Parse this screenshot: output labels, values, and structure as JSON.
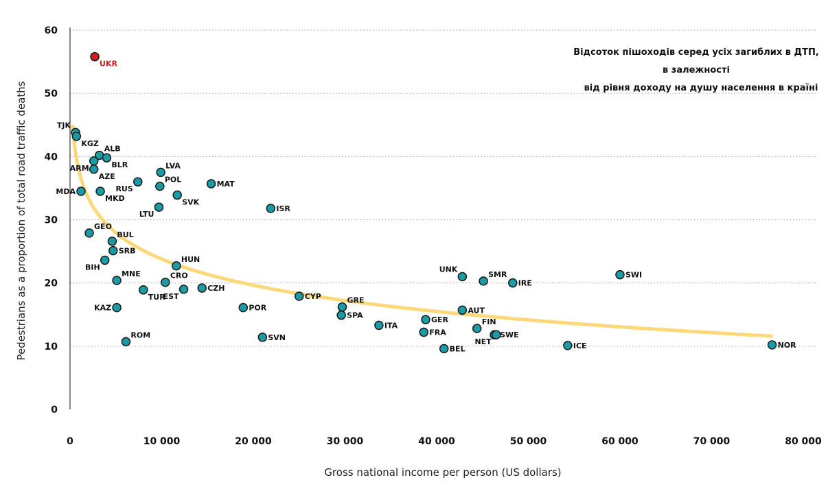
{
  "chart_data": {
    "type": "scatter",
    "title_lines": [
      "Відсоток пішоходів серед усіх загиблих в ДТП,",
      "в залежності",
      "від рівня доходу на душу населення в країні"
    ],
    "xlabel": "Gross national income per person (US dollars)",
    "ylabel": "Pedestrians as a proportion of total road traffic deaths",
    "xlim": [
      0,
      80000
    ],
    "ylim": [
      0,
      60
    ],
    "x_ticks": [
      0,
      10000,
      20000,
      30000,
      40000,
      50000,
      60000,
      70000,
      80000
    ],
    "x_tick_labels": [
      "0",
      "10 000",
      "20 000",
      "30 000",
      "40 000",
      "50 000",
      "60 000",
      "70 000",
      "80 000"
    ],
    "y_ticks": [
      0,
      10,
      20,
      30,
      40,
      50,
      60
    ],
    "y_tick_labels": [
      "0",
      "10",
      "20",
      "30",
      "40",
      "50",
      "60"
    ],
    "grid": "horizontal dotted",
    "colors": {
      "point": "#1a9ba5",
      "highlight": "#d21f1f",
      "trend": "#fbd97a",
      "outline": "#1a1a1a"
    },
    "trendline": {
      "type": "logarithmic",
      "x": [
        300,
        76500
      ],
      "y": [
        44.8,
        11.6
      ]
    },
    "points": [
      {
        "label": "UKR",
        "x": 2700,
        "y": 55.8,
        "highlight": true,
        "lp": "se"
      },
      {
        "label": "TJK",
        "x": 600,
        "y": 43.8,
        "lp": "nw"
      },
      {
        "label": "KGZ",
        "x": 700,
        "y": 43.2,
        "lp": "se"
      },
      {
        "label": "ALB",
        "x": 3200,
        "y": 40.2,
        "lp": "ne"
      },
      {
        "label": "BLR",
        "x": 4000,
        "y": 39.8,
        "lp": "se"
      },
      {
        "label": "ARM",
        "x": 2600,
        "y": 39.3,
        "lp": "sw"
      },
      {
        "label": "AZE",
        "x": 2600,
        "y": 38.0,
        "lp": "se"
      },
      {
        "label": "LVA",
        "x": 9900,
        "y": 37.5,
        "lp": "ne"
      },
      {
        "label": "RUS",
        "x": 7400,
        "y": 36.0,
        "lp": "sw"
      },
      {
        "label": "POL",
        "x": 9800,
        "y": 35.3,
        "lp": "ne"
      },
      {
        "label": "MAT",
        "x": 15400,
        "y": 35.7,
        "lp": "e"
      },
      {
        "label": "MDA",
        "x": 1200,
        "y": 34.5,
        "lp": "w"
      },
      {
        "label": "MKD",
        "x": 3300,
        "y": 34.5,
        "lp": "se"
      },
      {
        "label": "SVK",
        "x": 11700,
        "y": 33.9,
        "lp": "se"
      },
      {
        "label": "LTU",
        "x": 9700,
        "y": 32.0,
        "lp": "sw"
      },
      {
        "label": "ISR",
        "x": 21900,
        "y": 31.8,
        "lp": "e"
      },
      {
        "label": "GEO",
        "x": 2100,
        "y": 27.9,
        "lp": "ne"
      },
      {
        "label": "BUL",
        "x": 4600,
        "y": 26.6,
        "lp": "ne"
      },
      {
        "label": "SRB",
        "x": 4700,
        "y": 25.1,
        "lp": "e"
      },
      {
        "label": "BIH",
        "x": 3800,
        "y": 23.6,
        "lp": "sw"
      },
      {
        "label": "HUN",
        "x": 11600,
        "y": 22.7,
        "lp": "ne"
      },
      {
        "label": "MNE",
        "x": 5100,
        "y": 20.4,
        "lp": "ne"
      },
      {
        "label": "CRO",
        "x": 10400,
        "y": 20.1,
        "lp": "ne"
      },
      {
        "label": "TUR",
        "x": 8000,
        "y": 18.9,
        "lp": "se"
      },
      {
        "label": "EST",
        "x": 12400,
        "y": 19.0,
        "lp": "sw"
      },
      {
        "label": "CZH",
        "x": 14400,
        "y": 19.2,
        "lp": "e"
      },
      {
        "label": "KAZ",
        "x": 5100,
        "y": 16.1,
        "lp": "w"
      },
      {
        "label": "POR",
        "x": 18900,
        "y": 16.1,
        "lp": "e"
      },
      {
        "label": "CYP",
        "x": 25000,
        "y": 17.9,
        "lp": "e"
      },
      {
        "label": "GRE",
        "x": 29700,
        "y": 16.2,
        "lp": "ne"
      },
      {
        "label": "SPA",
        "x": 29600,
        "y": 14.9,
        "lp": "e"
      },
      {
        "label": "ITA",
        "x": 33700,
        "y": 13.3,
        "lp": "e"
      },
      {
        "label": "ROM",
        "x": 6100,
        "y": 10.7,
        "lp": "ne"
      },
      {
        "label": "SVN",
        "x": 21000,
        "y": 11.4,
        "lp": "e"
      },
      {
        "label": "UNK",
        "x": 42800,
        "y": 21.0,
        "lp": "nw"
      },
      {
        "label": "SMR",
        "x": 45100,
        "y": 20.3,
        "lp": "ne"
      },
      {
        "label": "IRE",
        "x": 48300,
        "y": 20.0,
        "lp": "e"
      },
      {
        "label": "SWI",
        "x": 60000,
        "y": 21.3,
        "lp": "e"
      },
      {
        "label": "AUT",
        "x": 42800,
        "y": 15.7,
        "lp": "e"
      },
      {
        "label": "GER",
        "x": 38800,
        "y": 14.2,
        "lp": "e"
      },
      {
        "label": "FIN",
        "x": 44400,
        "y": 12.8,
        "lp": "ne"
      },
      {
        "label": "FRA",
        "x": 38600,
        "y": 12.2,
        "lp": "e"
      },
      {
        "label": "SWE",
        "x": 46300,
        "y": 11.8,
        "lp": "e"
      },
      {
        "label": "NET",
        "x": 46500,
        "y": 11.8,
        "lp": "sw"
      },
      {
        "label": "BEL",
        "x": 40800,
        "y": 9.6,
        "lp": "e"
      },
      {
        "label": "ICE",
        "x": 54300,
        "y": 10.1,
        "lp": "e"
      },
      {
        "label": "NOR",
        "x": 76600,
        "y": 10.2,
        "lp": "e"
      }
    ]
  }
}
